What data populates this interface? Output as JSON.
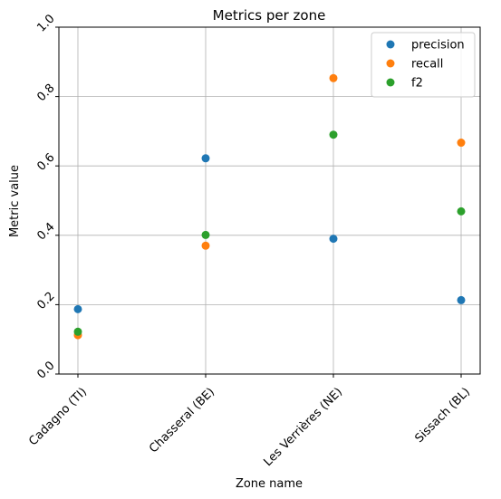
{
  "chart_data": {
    "type": "scatter",
    "title": "Metrics per zone",
    "xlabel": "Zone name",
    "ylabel": "Metric value",
    "categories": [
      "Cadagno (TI)",
      "Chasseral (BE)",
      "Les Verrières (NE)",
      "Sissach (BL)"
    ],
    "ylim": [
      0.0,
      1.0
    ],
    "yticks": [
      "0.0",
      "0.2",
      "0.4",
      "0.6",
      "0.8",
      "1.0"
    ],
    "grid": true,
    "legend_position": "top-right",
    "series": [
      {
        "name": "precision",
        "color": "#1f77b4",
        "values": [
          0.187,
          0.622,
          0.39,
          0.213
        ]
      },
      {
        "name": "recall",
        "color": "#ff7f0e",
        "values": [
          0.112,
          0.37,
          0.853,
          0.667
        ]
      },
      {
        "name": "f2",
        "color": "#2ca02c",
        "values": [
          0.122,
          0.401,
          0.69,
          0.469
        ]
      }
    ]
  }
}
